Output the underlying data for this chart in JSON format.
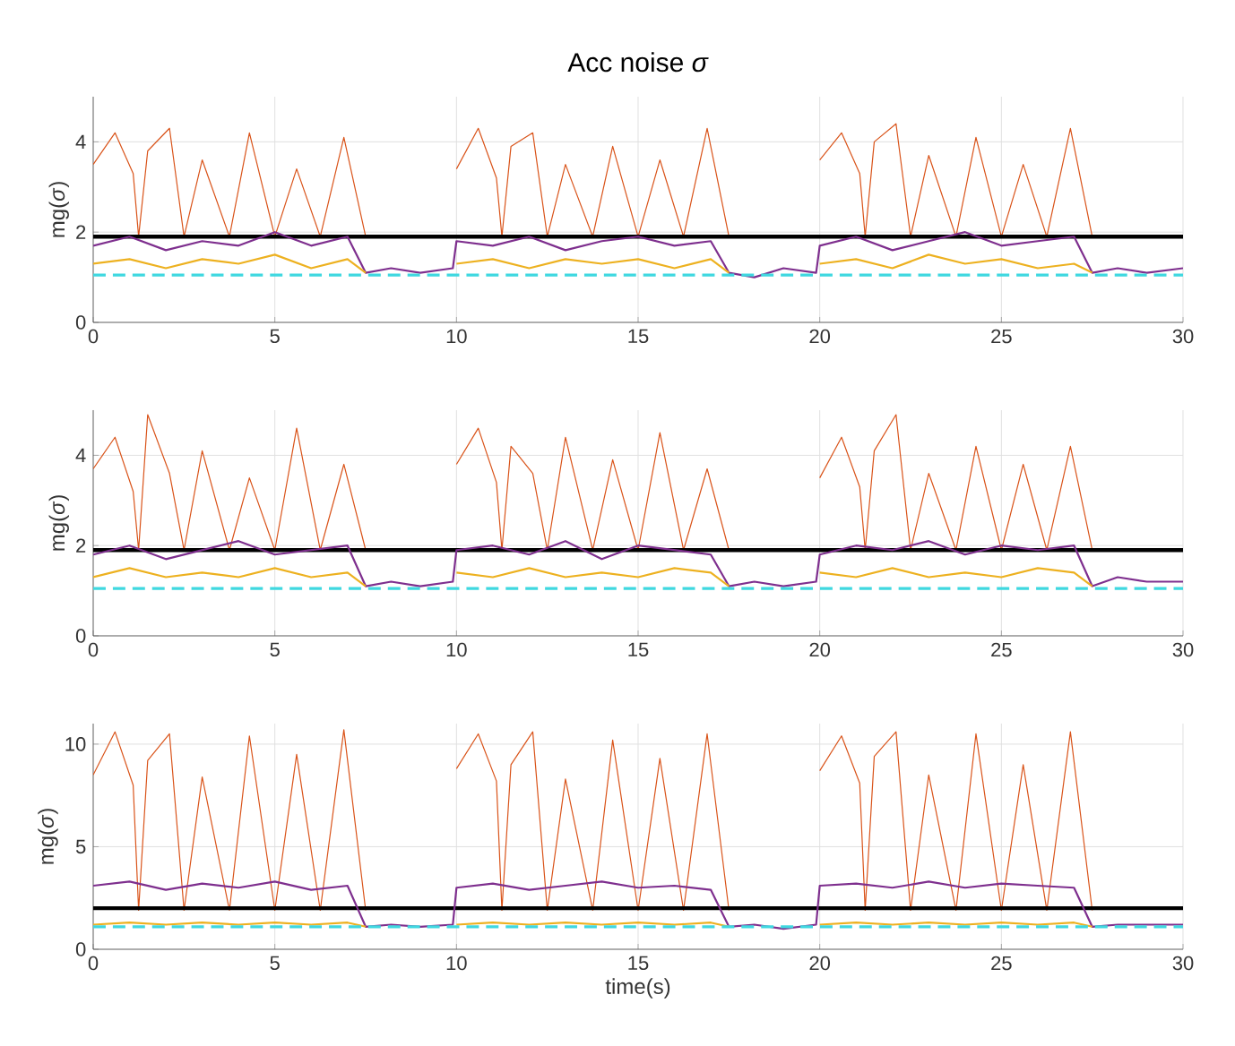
{
  "chart_data": [
    {
      "type": "line",
      "title": "Acc noise *σ*",
      "ylabel": "mg(*σ*)",
      "xlim": [
        0,
        30
      ],
      "xticks": [
        0,
        5,
        10,
        15,
        20,
        25,
        30
      ],
      "ylim": [
        0,
        5
      ],
      "yticks": [
        0,
        2,
        4
      ],
      "grid": true,
      "ref_lines": [
        {
          "axis": "y",
          "value": 1.9,
          "color": "#000000"
        }
      ],
      "series": [
        {
          "color": "#d95319",
          "x": [
            0,
            0.6,
            1.1,
            1.25,
            1.5,
            2.1,
            2.5,
            3,
            3.75,
            4.3,
            5,
            5.6,
            6.25,
            6.9,
            7.5,
            8.75,
            10,
            10.6,
            11.1,
            11.25,
            11.5,
            12.1,
            12.5,
            13,
            13.75,
            14.3,
            15,
            15.6,
            16.25,
            16.9,
            17.5,
            18.75,
            20,
            20.6,
            21.1,
            21.25,
            21.5,
            22.1,
            22.5,
            23,
            23.75,
            24.3,
            25,
            25.6,
            26.25,
            26.9,
            27.5
          ],
          "values": [
            3.5,
            4.2,
            3.3,
            1.9,
            3.8,
            4.3,
            1.9,
            3.6,
            1.9,
            4.2,
            1.9,
            3.4,
            1.9,
            4.1,
            1.9,
            null,
            3.4,
            4.3,
            3.2,
            1.9,
            3.9,
            4.2,
            1.9,
            3.5,
            1.9,
            3.9,
            1.9,
            3.6,
            1.9,
            4.3,
            1.9,
            null,
            3.6,
            4.2,
            3.3,
            1.9,
            4.0,
            4.4,
            1.9,
            3.7,
            1.9,
            4.1,
            1.9,
            3.5,
            1.9,
            4.3,
            1.9
          ]
        },
        {
          "color": "#7e2f8e",
          "x": [
            0,
            1,
            2,
            3,
            4,
            5,
            6,
            7,
            7.5,
            8.2,
            9,
            9.9,
            10,
            11,
            12,
            13,
            14,
            15,
            16,
            17,
            17.5,
            18.2,
            19,
            19.9,
            20,
            21,
            22,
            23,
            24,
            25,
            26,
            27,
            27.5,
            28.2,
            29,
            30
          ],
          "values": [
            1.7,
            1.9,
            1.6,
            1.8,
            1.7,
            2.0,
            1.7,
            1.9,
            1.1,
            1.2,
            1.1,
            1.2,
            1.8,
            1.7,
            1.9,
            1.6,
            1.8,
            1.9,
            1.7,
            1.8,
            1.1,
            1.0,
            1.2,
            1.1,
            1.7,
            1.9,
            1.6,
            1.8,
            2.0,
            1.7,
            1.8,
            1.9,
            1.1,
            1.2,
            1.1,
            1.2
          ]
        },
        {
          "color": "#edb120",
          "x": [
            0,
            1,
            2,
            3,
            4,
            5,
            6,
            7,
            7.5,
            8.75,
            10,
            11,
            12,
            13,
            14,
            15,
            16,
            17,
            17.5,
            18.75,
            20,
            21,
            22,
            23,
            24,
            25,
            26,
            27,
            27.5
          ],
          "values": [
            1.3,
            1.4,
            1.2,
            1.4,
            1.3,
            1.5,
            1.2,
            1.4,
            1.1,
            null,
            1.3,
            1.4,
            1.2,
            1.4,
            1.3,
            1.4,
            1.2,
            1.4,
            1.1,
            null,
            1.3,
            1.4,
            1.2,
            1.5,
            1.3,
            1.4,
            1.2,
            1.3,
            1.1
          ]
        },
        {
          "color": "#3fd8e0",
          "line_style": "dashed",
          "x": [
            0,
            30
          ],
          "values": [
            1.05,
            1.05
          ]
        }
      ]
    },
    {
      "type": "line",
      "ylabel": "mg(*σ*)",
      "xlim": [
        0,
        30
      ],
      "xticks": [
        0,
        5,
        10,
        15,
        20,
        25,
        30
      ],
      "ylim": [
        0,
        5
      ],
      "yticks": [
        0,
        2,
        4
      ],
      "grid": true,
      "ref_lines": [
        {
          "axis": "y",
          "value": 1.9,
          "color": "#000000"
        }
      ],
      "series": [
        {
          "color": "#d95319",
          "x": [
            0,
            0.6,
            1.1,
            1.25,
            1.5,
            2.1,
            2.5,
            3,
            3.75,
            4.3,
            5,
            5.6,
            6.25,
            6.9,
            7.5,
            8.75,
            10,
            10.6,
            11.1,
            11.25,
            11.5,
            12.1,
            12.5,
            13,
            13.75,
            14.3,
            15,
            15.6,
            16.25,
            16.9,
            17.5,
            18.75,
            20,
            20.6,
            21.1,
            21.25,
            21.5,
            22.1,
            22.5,
            23,
            23.75,
            24.3,
            25,
            25.6,
            26.25,
            26.9,
            27.5
          ],
          "values": [
            3.7,
            4.4,
            3.2,
            1.9,
            4.9,
            3.6,
            1.9,
            4.1,
            1.9,
            3.5,
            1.9,
            4.6,
            1.9,
            3.8,
            1.9,
            null,
            3.8,
            4.6,
            3.4,
            1.9,
            4.2,
            3.6,
            1.9,
            4.4,
            1.9,
            3.9,
            1.9,
            4.5,
            1.9,
            3.7,
            1.9,
            null,
            3.5,
            4.4,
            3.3,
            1.9,
            4.1,
            4.9,
            1.9,
            3.6,
            1.9,
            4.2,
            1.9,
            3.8,
            1.9,
            4.2,
            1.9
          ]
        },
        {
          "color": "#7e2f8e",
          "x": [
            0,
            1,
            2,
            3,
            4,
            5,
            6,
            7,
            7.5,
            8.2,
            9,
            9.9,
            10,
            11,
            12,
            13,
            14,
            15,
            16,
            17,
            17.5,
            18.2,
            19,
            19.9,
            20,
            21,
            22,
            23,
            24,
            25,
            26,
            27,
            27.5,
            28.2,
            29,
            30
          ],
          "values": [
            1.8,
            2.0,
            1.7,
            1.9,
            2.1,
            1.8,
            1.9,
            2.0,
            1.1,
            1.2,
            1.1,
            1.2,
            1.9,
            2.0,
            1.8,
            2.1,
            1.7,
            2.0,
            1.9,
            1.8,
            1.1,
            1.2,
            1.1,
            1.2,
            1.8,
            2.0,
            1.9,
            2.1,
            1.8,
            2.0,
            1.9,
            2.0,
            1.1,
            1.3,
            1.2,
            1.2
          ]
        },
        {
          "color": "#edb120",
          "x": [
            0,
            1,
            2,
            3,
            4,
            5,
            6,
            7,
            7.5,
            8.75,
            10,
            11,
            12,
            13,
            14,
            15,
            16,
            17,
            17.5,
            18.75,
            20,
            21,
            22,
            23,
            24,
            25,
            26,
            27,
            27.5
          ],
          "values": [
            1.3,
            1.5,
            1.3,
            1.4,
            1.3,
            1.5,
            1.3,
            1.4,
            1.1,
            null,
            1.4,
            1.3,
            1.5,
            1.3,
            1.4,
            1.3,
            1.5,
            1.4,
            1.1,
            null,
            1.4,
            1.3,
            1.5,
            1.3,
            1.4,
            1.3,
            1.5,
            1.4,
            1.1
          ]
        },
        {
          "color": "#3fd8e0",
          "line_style": "dashed",
          "x": [
            0,
            30
          ],
          "values": [
            1.05,
            1.05
          ]
        }
      ]
    },
    {
      "type": "line",
      "ylabel": "mg(*σ*)",
      "xlabel": "time(s)",
      "xlim": [
        0,
        30
      ],
      "xticks": [
        0,
        5,
        10,
        15,
        20,
        25,
        30
      ],
      "ylim": [
        0,
        11
      ],
      "yticks": [
        0,
        5,
        10
      ],
      "grid": true,
      "ref_lines": [
        {
          "axis": "y",
          "value": 2.0,
          "color": "#000000"
        }
      ],
      "series": [
        {
          "color": "#d95319",
          "x": [
            0,
            0.6,
            1.1,
            1.25,
            1.5,
            2.1,
            2.5,
            3,
            3.75,
            4.3,
            5,
            5.6,
            6.25,
            6.9,
            7.5,
            8.75,
            10,
            10.6,
            11.1,
            11.25,
            11.5,
            12.1,
            12.5,
            13,
            13.75,
            14.3,
            15,
            15.6,
            16.25,
            16.9,
            17.5,
            18.75,
            20,
            20.6,
            21.1,
            21.25,
            21.5,
            22.1,
            22.5,
            23,
            23.75,
            24.3,
            25,
            25.6,
            26.25,
            26.9,
            27.5
          ],
          "values": [
            8.5,
            10.6,
            8.0,
            1.9,
            9.2,
            10.5,
            1.9,
            8.4,
            1.9,
            10.4,
            1.9,
            9.5,
            1.9,
            10.7,
            1.9,
            null,
            8.8,
            10.5,
            8.2,
            1.9,
            9.0,
            10.6,
            1.9,
            8.3,
            1.9,
            10.2,
            1.9,
            9.3,
            1.9,
            10.5,
            1.9,
            null,
            8.7,
            10.4,
            8.1,
            1.9,
            9.4,
            10.6,
            1.9,
            8.5,
            1.9,
            10.5,
            1.9,
            9.0,
            1.9,
            10.6,
            1.9
          ]
        },
        {
          "color": "#7e2f8e",
          "x": [
            0,
            1,
            2,
            3,
            4,
            5,
            6,
            7,
            7.5,
            8.2,
            9,
            9.9,
            10,
            11,
            12,
            13,
            14,
            15,
            16,
            17,
            17.5,
            18.2,
            19,
            19.9,
            20,
            21,
            22,
            23,
            24,
            25,
            26,
            27,
            27.5,
            28.2,
            29,
            30
          ],
          "values": [
            3.1,
            3.3,
            2.9,
            3.2,
            3.0,
            3.3,
            2.9,
            3.1,
            1.1,
            1.2,
            1.1,
            1.2,
            3.0,
            3.2,
            2.9,
            3.1,
            3.3,
            3.0,
            3.1,
            2.9,
            1.1,
            1.2,
            1.0,
            1.2,
            3.1,
            3.2,
            3.0,
            3.3,
            3.0,
            3.2,
            3.1,
            3.0,
            1.1,
            1.2,
            1.2,
            1.2
          ]
        },
        {
          "color": "#edb120",
          "x": [
            0,
            1,
            2,
            3,
            4,
            5,
            6,
            7,
            7.5,
            8.75,
            10,
            11,
            12,
            13,
            14,
            15,
            16,
            17,
            17.5,
            18.75,
            20,
            21,
            22,
            23,
            24,
            25,
            26,
            27,
            27.5
          ],
          "values": [
            1.2,
            1.3,
            1.2,
            1.3,
            1.2,
            1.3,
            1.2,
            1.3,
            1.1,
            null,
            1.2,
            1.3,
            1.2,
            1.3,
            1.2,
            1.3,
            1.2,
            1.3,
            1.1,
            null,
            1.2,
            1.3,
            1.2,
            1.3,
            1.2,
            1.3,
            1.2,
            1.3,
            1.1
          ]
        },
        {
          "color": "#3fd8e0",
          "line_style": "dashed",
          "x": [
            0,
            30
          ],
          "values": [
            1.1,
            1.1
          ]
        }
      ]
    }
  ]
}
